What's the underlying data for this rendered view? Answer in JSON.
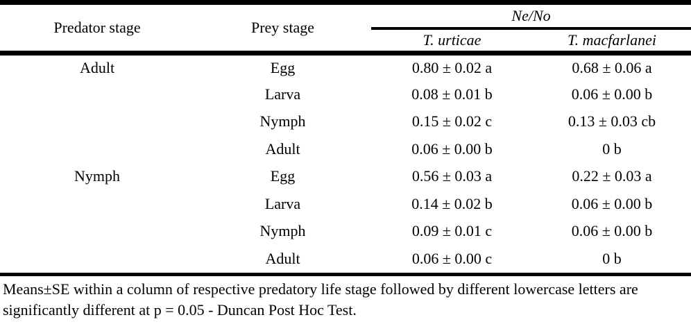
{
  "table": {
    "columns": {
      "predator": "Predator stage",
      "prey": "Prey stage",
      "group": "Ne/No",
      "species": [
        "T. urticae",
        "T. macfarlanei"
      ]
    },
    "rows": [
      {
        "predator": "Adult",
        "prey": "Egg",
        "urticae": "0.80 ± 0.02 a",
        "macfarlanei": "0.68 ± 0.06 a"
      },
      {
        "predator": "",
        "prey": "Larva",
        "urticae": "0.08 ± 0.01 b",
        "macfarlanei": "0.06 ± 0.00 b"
      },
      {
        "predator": "",
        "prey": "Nymph",
        "urticae": "0.15 ± 0.02 c",
        "macfarlanei": "0.13 ± 0.03 cb"
      },
      {
        "predator": "",
        "prey": "Adult",
        "urticae": "0.06 ± 0.00 b",
        "macfarlanei": "0 b"
      },
      {
        "predator": "Nymph",
        "prey": "Egg",
        "urticae": "0.56 ± 0.03 a",
        "macfarlanei": "0.22 ± 0.03 a"
      },
      {
        "predator": "",
        "prey": "Larva",
        "urticae": "0.14 ± 0.02 b",
        "macfarlanei": "0.06 ± 0.00 b"
      },
      {
        "predator": "",
        "prey": "Nymph",
        "urticae": "0.09 ± 0.01 c",
        "macfarlanei": "0.06 ± 0.00 b"
      },
      {
        "predator": "",
        "prey": "Adult",
        "urticae": "0.06 ± 0.00 c",
        "macfarlanei": "0 b"
      }
    ],
    "footnote": "Means±SE within a column of respective predatory life stage followed by different lowercase letters are significantly different at p = 0.05 - Duncan Post Hoc Test.",
    "colors": {
      "border": "#000000",
      "background": "#ffffff",
      "text": "#000000"
    }
  }
}
